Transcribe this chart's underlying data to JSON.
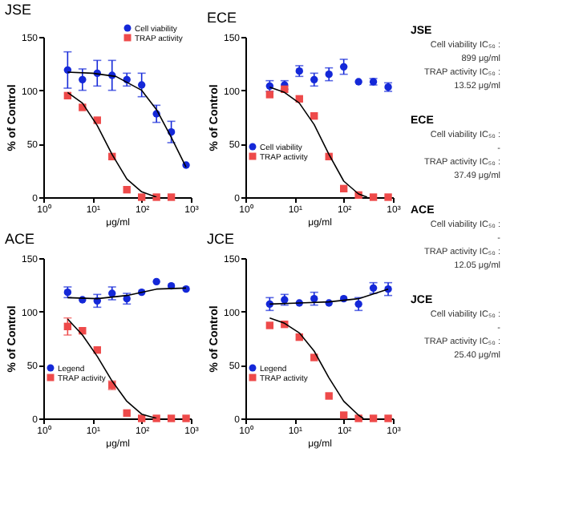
{
  "chart_data": [
    {
      "type": "scatter",
      "title": "JSE",
      "xlabel": "μg/ml",
      "ylabel": "% of Control",
      "log": "x",
      "xlim": [
        1,
        1000
      ],
      "ylim": [
        0,
        150
      ],
      "yticks": [
        0,
        50,
        100,
        150
      ],
      "xticks": [
        {
          "value": 1,
          "label": "10⁰"
        },
        {
          "value": 10,
          "label": "10¹"
        },
        {
          "value": 100,
          "label": "10²"
        },
        {
          "value": 1000,
          "label": "10³"
        }
      ],
      "grid": false,
      "legend": "top right",
      "series": [
        {
          "name": "Cell viability",
          "color": "#1428d8",
          "marker": "circle",
          "x": [
            3.125,
            6.25,
            12.5,
            25,
            50,
            100,
            200,
            400,
            800
          ],
          "values": [
            119,
            110,
            116,
            114,
            110,
            105,
            78,
            61,
            30
          ],
          "errors": [
            17,
            10,
            12,
            14,
            6,
            11,
            8,
            10,
            null
          ]
        },
        {
          "name": "TRAP activity",
          "color": "#ee4a4a",
          "marker": "square",
          "x": [
            3.125,
            6.25,
            12.5,
            25,
            50,
            100,
            200,
            400
          ],
          "values": [
            95,
            84,
            72,
            38,
            7,
            0,
            0,
            0
          ]
        },
        {
          "type": "line",
          "color": "#000000",
          "x": [
            3.125,
            10,
            30,
            100,
            200,
            400,
            800
          ],
          "values": [
            117,
            116,
            113,
            100,
            82,
            56,
            28
          ]
        },
        {
          "type": "line",
          "color": "#000000",
          "x": [
            3.125,
            6.25,
            12.5,
            25,
            50,
            100,
            200
          ],
          "values": [
            98,
            88,
            67,
            40,
            17,
            5,
            0
          ]
        }
      ]
    },
    {
      "type": "scatter",
      "title": "ECE",
      "xlabel": "μg/ml",
      "ylabel": "% of Control",
      "log": "x",
      "xlim": [
        1,
        1000
      ],
      "ylim": [
        0,
        150
      ],
      "yticks": [
        0,
        50,
        100,
        150
      ],
      "xticks": [
        {
          "value": 1,
          "label": "10⁰"
        },
        {
          "value": 10,
          "label": "10¹"
        },
        {
          "value": 100,
          "label": "10²"
        },
        {
          "value": 1000,
          "label": "10³"
        }
      ],
      "grid": false,
      "legend": "bottom left",
      "series": [
        {
          "name": "Cell viability",
          "color": "#1428d8",
          "marker": "circle",
          "x": [
            3.125,
            6.25,
            12.5,
            25,
            50,
            100,
            200,
            400,
            800
          ],
          "values": [
            104,
            105,
            118,
            110,
            115,
            122,
            108,
            108,
            103
          ],
          "errors": [
            5,
            4,
            5,
            6,
            6,
            7,
            null,
            3,
            4
          ]
        },
        {
          "name": "TRAP activity",
          "color": "#ee4a4a",
          "marker": "square",
          "x": [
            3.125,
            6.25,
            12.5,
            25,
            50,
            100,
            200,
            400,
            800
          ],
          "values": [
            96,
            101,
            92,
            76,
            38,
            8,
            2,
            0,
            0
          ]
        },
        {
          "type": "line",
          "color": "#000000",
          "x": [
            3.125,
            6.25,
            12.5,
            25,
            50,
            100,
            200,
            300
          ],
          "values": [
            103,
            98,
            88,
            68,
            40,
            15,
            3,
            0
          ]
        }
      ]
    },
    {
      "type": "scatter",
      "title": "ACE",
      "xlabel": "μg/ml",
      "ylabel": "% of Control",
      "log": "x",
      "xlim": [
        1,
        1000
      ],
      "ylim": [
        0,
        150
      ],
      "yticks": [
        0,
        50,
        100,
        150
      ],
      "xticks": [
        {
          "value": 1,
          "label": "10⁰"
        },
        {
          "value": 10,
          "label": "10¹"
        },
        {
          "value": 100,
          "label": "10²"
        },
        {
          "value": 1000,
          "label": "10³"
        }
      ],
      "grid": false,
      "legend": "bottom left",
      "series": [
        {
          "name": "Legend",
          "color": "#1428d8",
          "marker": "circle",
          "x": [
            3.125,
            6.25,
            12.5,
            25,
            50,
            100,
            200,
            400,
            800
          ],
          "values": [
            118,
            111,
            110,
            117,
            112,
            118,
            128,
            124,
            121
          ],
          "errors": [
            5,
            null,
            6,
            6,
            5,
            null,
            null,
            null,
            null
          ]
        },
        {
          "name": "TRAP activity",
          "color": "#ee4a4a",
          "marker": "square",
          "x": [
            3.125,
            6.25,
            12.5,
            25,
            50,
            100,
            200,
            400,
            800
          ],
          "values": [
            86,
            82,
            64,
            31,
            5,
            0,
            0,
            0,
            0
          ],
          "errors": [
            8,
            null,
            null,
            4,
            null,
            null,
            null,
            null,
            null
          ]
        },
        {
          "type": "line",
          "color": "#000000",
          "x": [
            3.125,
            12.5,
            50,
            200,
            800
          ],
          "values": [
            113,
            112,
            115,
            121,
            122
          ]
        },
        {
          "type": "line",
          "color": "#000000",
          "x": [
            3.125,
            6.25,
            12.5,
            25,
            50,
            100,
            200
          ],
          "values": [
            93,
            78,
            58,
            35,
            16,
            4,
            0
          ]
        }
      ]
    },
    {
      "type": "scatter",
      "title": "JCE",
      "xlabel": "μg/ml",
      "ylabel": "% of Control",
      "log": "x",
      "xlim": [
        1,
        1000
      ],
      "ylim": [
        0,
        150
      ],
      "yticks": [
        0,
        50,
        100,
        150
      ],
      "xticks": [
        {
          "value": 1,
          "label": "10⁰"
        },
        {
          "value": 10,
          "label": "10¹"
        },
        {
          "value": 100,
          "label": "10²"
        },
        {
          "value": 1000,
          "label": "10³"
        }
      ],
      "grid": false,
      "legend": "bottom left",
      "series": [
        {
          "name": "Legend",
          "color": "#1428d8",
          "marker": "circle",
          "x": [
            3.125,
            6.25,
            12.5,
            25,
            50,
            100,
            200,
            400,
            800
          ],
          "values": [
            107,
            111,
            108,
            112,
            108,
            112,
            107,
            122,
            121
          ],
          "errors": [
            6,
            5,
            null,
            6,
            null,
            null,
            6,
            5,
            6
          ]
        },
        {
          "name": "TRAP activity",
          "color": "#ee4a4a",
          "marker": "square",
          "x": [
            3.125,
            6.25,
            12.5,
            25,
            50,
            100,
            200,
            400,
            800
          ],
          "values": [
            87,
            88,
            76,
            57,
            21,
            3,
            0,
            0,
            0
          ]
        },
        {
          "type": "line",
          "color": "#000000",
          "x": [
            3.125,
            12.5,
            50,
            200,
            800
          ],
          "values": [
            107,
            108,
            109,
            112,
            121
          ]
        },
        {
          "type": "line",
          "color": "#000000",
          "x": [
            3.125,
            6.25,
            12.5,
            25,
            50,
            100,
            200,
            250
          ],
          "values": [
            94,
            89,
            80,
            63,
            38,
            16,
            3,
            0
          ]
        }
      ]
    },
    {
      "type": "other",
      "title": "JSE",
      "annotations": [
        "Cell viability IC₅₀ :",
        "899 μg/ml",
        "TRAP activity IC₅₀ :",
        "13.52 μg/ml"
      ]
    },
    {
      "type": "other",
      "title": "ECE",
      "annotations": [
        "Cell viability IC₅₀ :",
        "-",
        "TRAP activity IC₅₀ :",
        "37.49 μg/ml"
      ]
    },
    {
      "type": "other",
      "title": "ACE",
      "annotations": [
        "Cell viability IC₅₀ :",
        "-",
        "TRAP activity IC₅₀ :",
        "12.05 μg/ml"
      ]
    },
    {
      "type": "other",
      "title": "JCE",
      "annotations": [
        "Cell viability IC₅₀ :",
        "-",
        "TRAP activity IC₅₀ :",
        "25.40 μg/ml"
      ]
    }
  ]
}
